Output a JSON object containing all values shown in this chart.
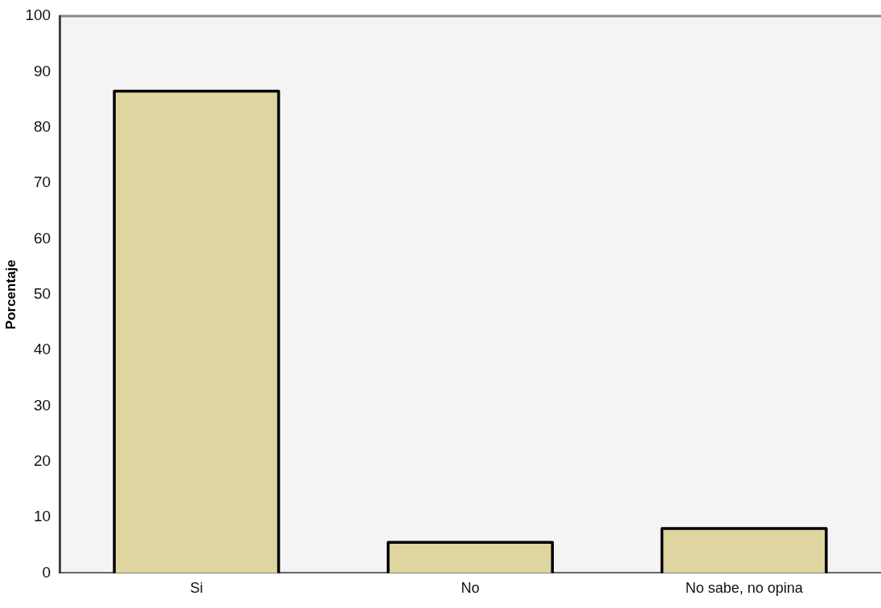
{
  "chart_data": {
    "type": "bar",
    "ylabel": "Porcentaje",
    "categories": [
      "Si",
      "No",
      "No sabe, no opina"
    ],
    "values": [
      86.5,
      5.5,
      8
    ],
    "color": "#ded5a0",
    "ylim": [
      0,
      100
    ],
    "yticks": [
      0,
      10,
      20,
      30,
      40,
      50,
      60,
      70,
      80,
      90,
      100
    ],
    "grid": false,
    "legend": false
  }
}
